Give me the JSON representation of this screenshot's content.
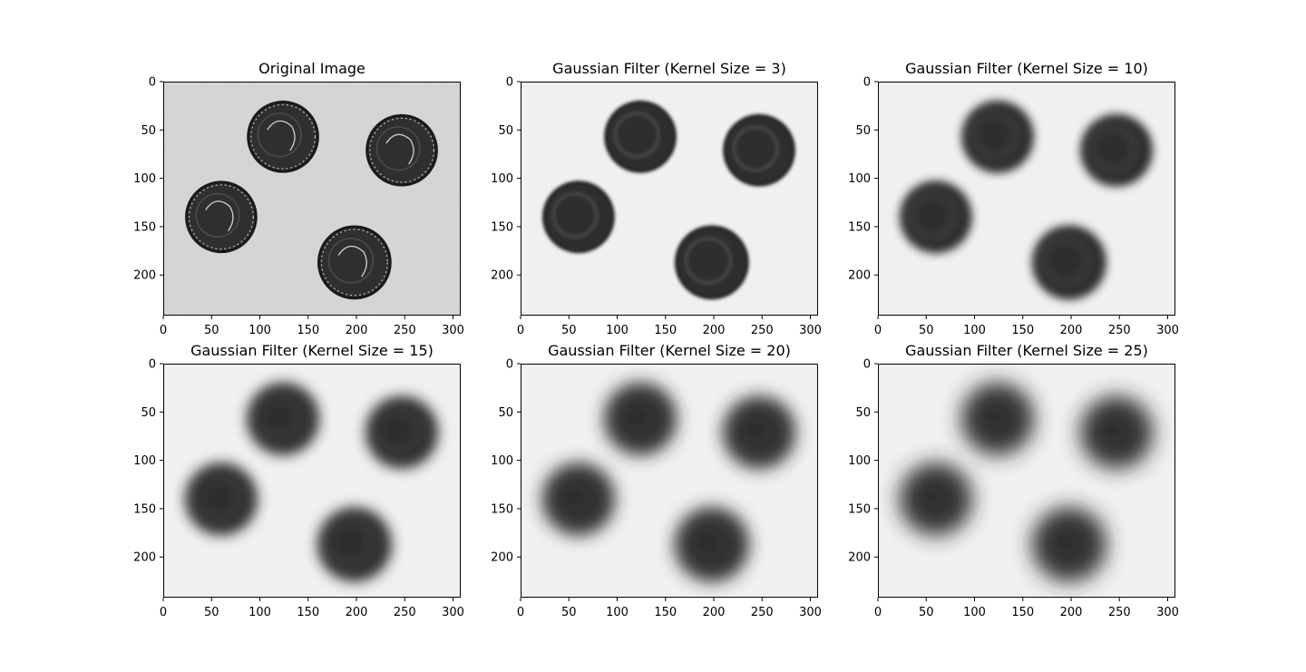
{
  "figure": {
    "panels": [
      {
        "title": "Original Image",
        "blur": 0
      },
      {
        "title": "Gaussian Filter (Kernel Size = 3)",
        "blur": 3
      },
      {
        "title": "Gaussian Filter (Kernel Size = 10)",
        "blur": 10
      },
      {
        "title": "Gaussian Filter (Kernel Size = 15)",
        "blur": 15
      },
      {
        "title": "Gaussian Filter (Kernel Size = 20)",
        "blur": 20
      },
      {
        "title": "Gaussian Filter (Kernel Size = 25)",
        "blur": 25
      }
    ],
    "x_ticks": [
      "0",
      "50",
      "100",
      "150",
      "200",
      "250",
      "300"
    ],
    "y_ticks": [
      "0",
      "50",
      "100",
      "150",
      "200"
    ],
    "image_extent": {
      "width": 308,
      "height": 242
    },
    "coins": [
      {
        "cx": 124,
        "cy": 57,
        "r": 36
      },
      {
        "cx": 247,
        "cy": 71,
        "r": 36
      },
      {
        "cx": 60,
        "cy": 140,
        "r": 36
      },
      {
        "cx": 198,
        "cy": 187,
        "r": 37
      }
    ],
    "colors": {
      "background": "#d6d6d6",
      "blurred_background": "#f0f0f0",
      "coin": "#2f2f2f"
    }
  }
}
